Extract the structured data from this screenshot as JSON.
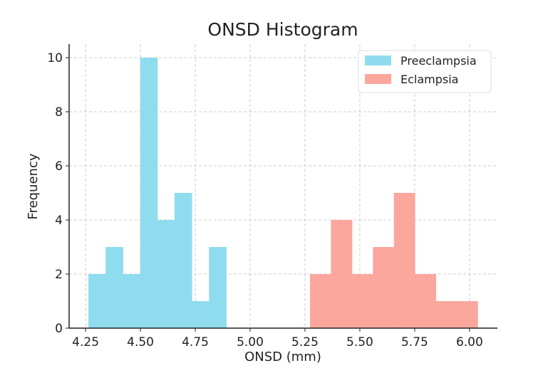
{
  "chart_data": {
    "type": "bar",
    "title": "ONSD Histogram",
    "xlabel": "ONSD (mm)",
    "ylabel": "Frequency",
    "xlim": [
      4.175,
      6.127
    ],
    "ylim": [
      0,
      10.5
    ],
    "xticks": [
      "4.25",
      "4.50",
      "4.75",
      "5.00",
      "5.25",
      "5.50",
      "5.75",
      "6.00"
    ],
    "yticks": [
      "0",
      "2",
      "4",
      "6",
      "8",
      "10"
    ],
    "grid": true,
    "legend_position": "top-right",
    "series": [
      {
        "name": "Preeclampsia",
        "color": "#8fdcef",
        "bin_start": 4.263,
        "bin_width": 0.0785,
        "counts": [
          2,
          3,
          2,
          10,
          4,
          5,
          1,
          3
        ]
      },
      {
        "name": "Eclampsia",
        "color": "#fba79e",
        "bin_start": 5.273,
        "bin_width": 0.0955,
        "counts": [
          2,
          4,
          2,
          3,
          5,
          2,
          1,
          1
        ]
      }
    ]
  }
}
